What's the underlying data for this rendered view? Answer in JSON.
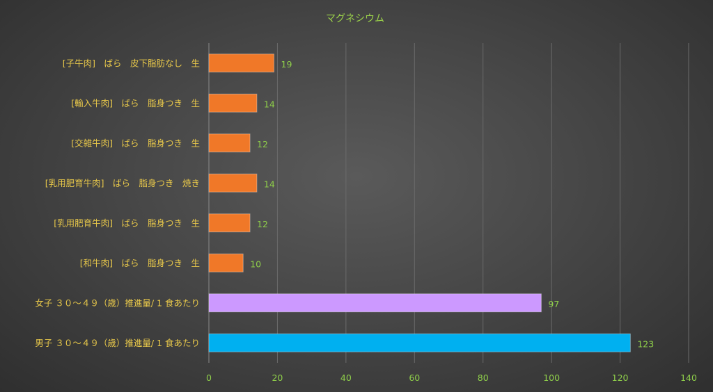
{
  "chart_data": {
    "type": "bar",
    "orientation": "horizontal",
    "title": "マグネシウム",
    "categories": [
      "[子牛肉]　ばら　皮下脂肪なし　生",
      "[輸入牛肉]　ばら　脂身つき　生",
      "[交雑牛肉]　ばら　脂身つき　生",
      "[乳用肥育牛肉]　ばら　脂身つき　焼き",
      "[乳用肥育牛肉]　ばら　脂身つき　生",
      "[和牛肉]　ばら　脂身つき　生",
      "女子 ３０～４９（歳）推進量/ 1 食あたり",
      "男子 ３０～４９（歳）推進量/ 1 食あたり"
    ],
    "values": [
      19,
      14,
      12,
      14,
      12,
      10,
      97,
      123
    ],
    "bar_colors": [
      "#f07828",
      "#f07828",
      "#f07828",
      "#f07828",
      "#f07828",
      "#f07828",
      "#cc99ff",
      "#00b0f0"
    ],
    "xlim": [
      0,
      140
    ],
    "xticks": [
      0,
      20,
      40,
      60,
      80,
      100,
      120,
      140
    ],
    "grid": true,
    "legend": "none"
  }
}
